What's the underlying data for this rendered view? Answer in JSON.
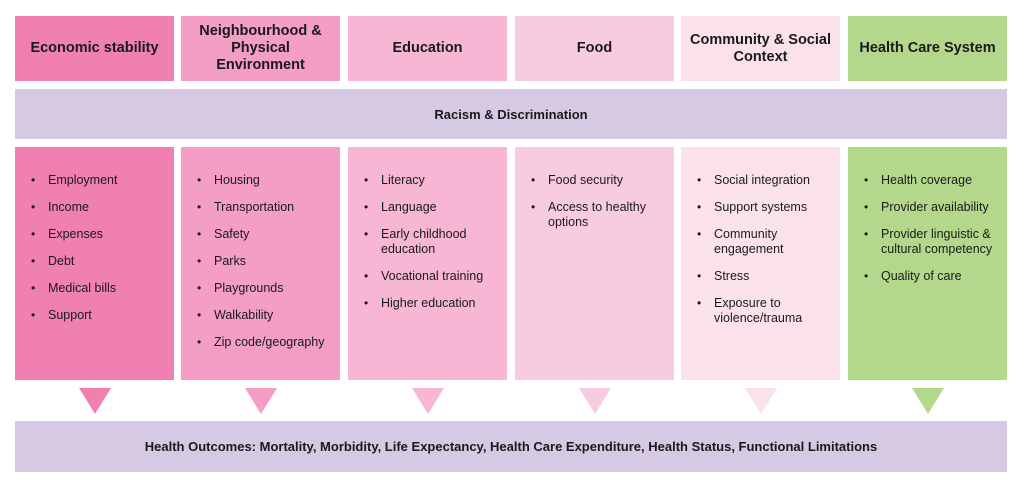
{
  "columns": [
    {
      "title": "Economic stability",
      "color": "#f07fb2",
      "items": [
        "Employment",
        "Income",
        "Expenses",
        "Debt",
        "Medical bills",
        "Support"
      ]
    },
    {
      "title": "Neighbourhood & Physical Environment",
      "color": "#f49dc5",
      "items": [
        "Housing",
        "Transportation",
        "Safety",
        "Parks",
        "Playgrounds",
        "Walkability",
        "Zip code/geography"
      ]
    },
    {
      "title": "Education",
      "color": "#f7b6d3",
      "items": [
        "Literacy",
        "Language",
        "Early childhood education",
        "Vocational training",
        "Higher education"
      ]
    },
    {
      "title": "Food",
      "color": "#f8cce0",
      "items": [
        "Food security",
        "Access to healthy options"
      ]
    },
    {
      "title": "Community & Social Context",
      "color": "#fbe1ec",
      "items": [
        "Social integration",
        "Support systems",
        "Community engagement",
        "Stress",
        "Exposure to violence/trauma"
      ]
    },
    {
      "title": "Health Care System",
      "color": "#b3d88c",
      "items": [
        "Health coverage",
        "Provider availability",
        "Provider linguistic & cultural competency",
        "Quality of care"
      ]
    }
  ],
  "racism_band": "Racism & Discrimination",
  "outcomes_band": "Health Outcomes: Mortality, Morbidity, Life Expectancy, Health Care Expenditure, Health Status, Functional Limitations",
  "band_color": "#d6c9e3"
}
